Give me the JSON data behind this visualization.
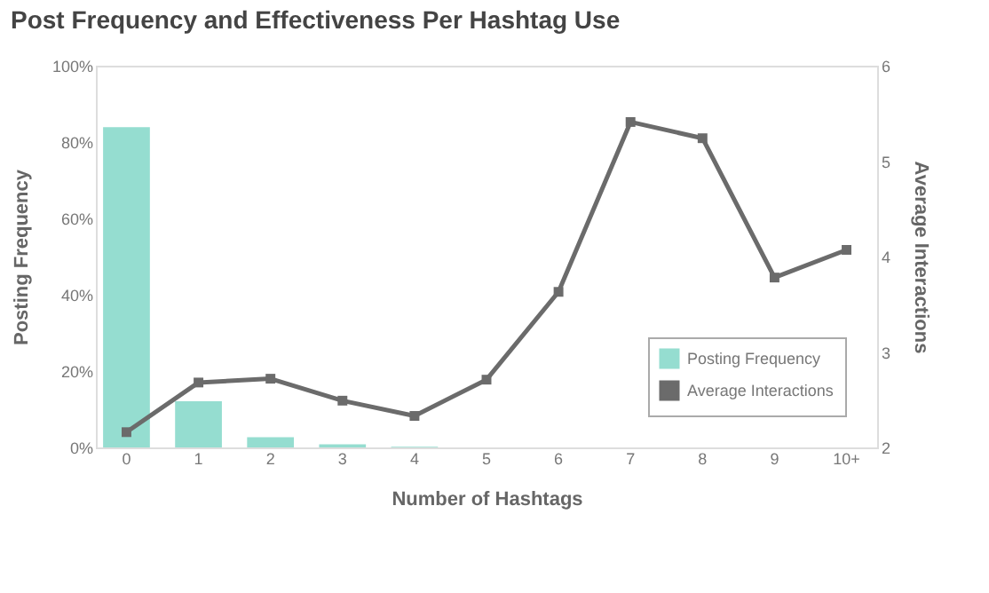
{
  "chart_data": {
    "type": "bar",
    "title": "Post Frequency and Effectiveness Per Hashtag Use",
    "xlabel": "Number of Hashtags",
    "ylabel": "Posting Frequency",
    "y2label": "Average Interactions",
    "categories": [
      "0",
      "1",
      "2",
      "3",
      "4",
      "5",
      "6",
      "7",
      "8",
      "9",
      "10+"
    ],
    "series": [
      {
        "name": "Posting Frequency",
        "color": "#95ddd0",
        "values": [
          83.9,
          12.1,
          2.7,
          0.8,
          0.2,
          null,
          null,
          null,
          null,
          null,
          null
        ]
      },
      {
        "name": "Average Interactions",
        "type": "line",
        "axis": "y2",
        "color": "#6b6b6b",
        "marker": "square",
        "values": [
          2.16,
          2.68,
          2.72,
          2.49,
          2.33,
          2.71,
          3.63,
          5.41,
          5.24,
          3.78,
          4.07
        ]
      }
    ],
    "ylim": [
      0,
      100
    ],
    "yticks": [
      {
        "value": 0,
        "label": "0%"
      },
      {
        "value": 20,
        "label": "20%"
      },
      {
        "value": 40,
        "label": "40%"
      },
      {
        "value": 60,
        "label": "60%"
      },
      {
        "value": 80,
        "label": "80%"
      },
      {
        "value": 100,
        "label": "100%"
      }
    ],
    "y2lim": [
      2,
      6
    ],
    "y2ticks": [
      2,
      3,
      4,
      5,
      6
    ],
    "legend": "bottom right",
    "grid": false
  }
}
